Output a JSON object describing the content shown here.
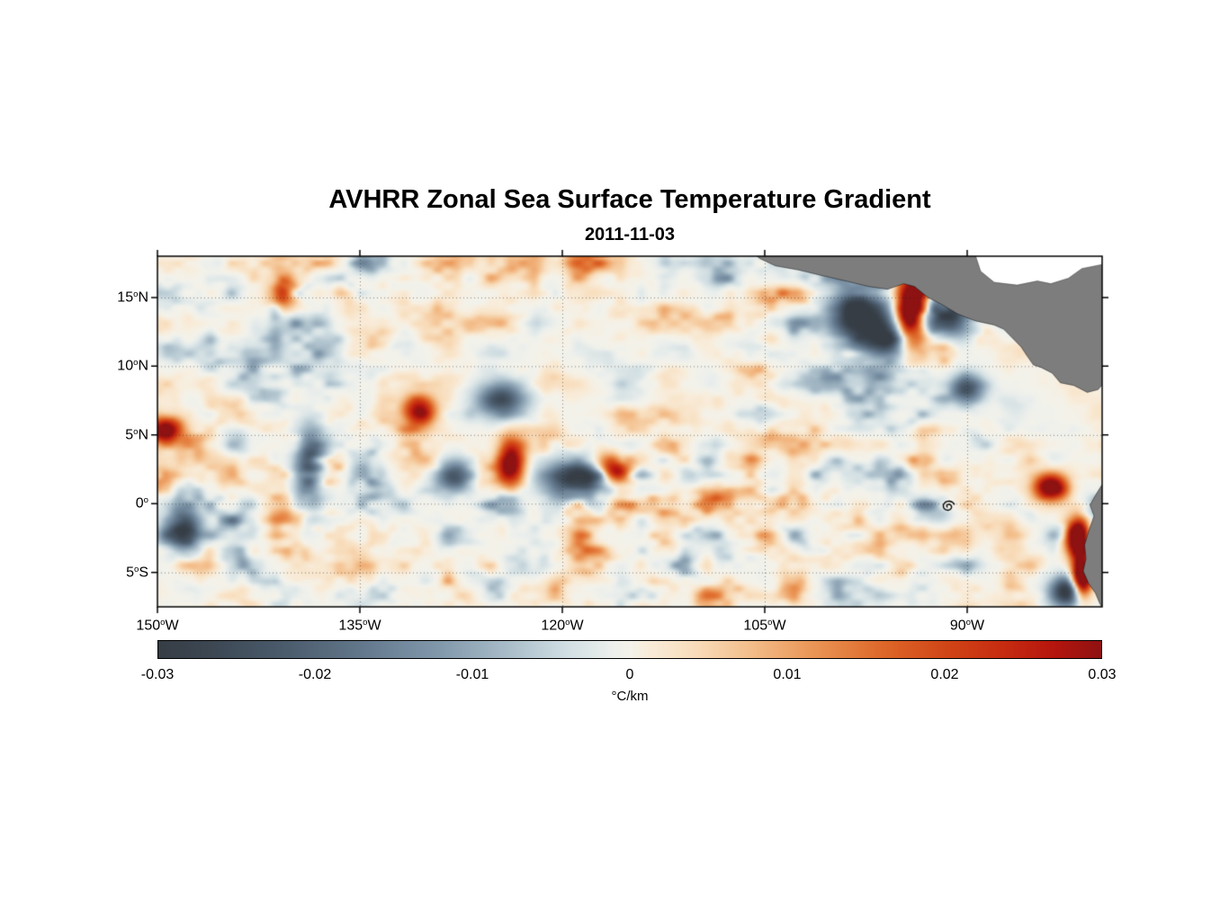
{
  "figure": {
    "title": "AVHRR Zonal Sea Surface Temperature Gradient",
    "date": "2011-11-03"
  },
  "chart_data": {
    "type": "heatmap",
    "title": "AVHRR Zonal Sea Surface Temperature Gradient",
    "subtitle": "2011-11-03",
    "variable": "zonal sea surface temperature gradient",
    "units": "°C/km",
    "lon_range": [
      -150,
      -80
    ],
    "lat_range": [
      -7.5,
      18
    ],
    "x_ticks": [
      {
        "value": -150,
        "label": "150",
        "sup": "o",
        "suffix": "W"
      },
      {
        "value": -135,
        "label": "135",
        "sup": "o",
        "suffix": "W"
      },
      {
        "value": -120,
        "label": "120",
        "sup": "o",
        "suffix": "W"
      },
      {
        "value": -105,
        "label": "105",
        "sup": "o",
        "suffix": "W"
      },
      {
        "value": -90,
        "label": "90",
        "sup": "o",
        "suffix": "W"
      }
    ],
    "y_ticks": [
      {
        "value": 15,
        "label": "15",
        "sup": "o",
        "suffix": "N"
      },
      {
        "value": 10,
        "label": "10",
        "sup": "o",
        "suffix": "N"
      },
      {
        "value": 5,
        "label": "5",
        "sup": "o",
        "suffix": "N"
      },
      {
        "value": 0,
        "label": "0",
        "sup": "o",
        "suffix": ""
      },
      {
        "value": -5,
        "label": "5",
        "sup": "o",
        "suffix": "S"
      }
    ],
    "grid": {
      "style": "dotted",
      "x_values": [
        -135,
        -120,
        -105,
        -90
      ],
      "y_values": [
        15,
        10,
        5,
        0,
        -5
      ]
    },
    "colorbar": {
      "min": -0.03,
      "max": 0.03,
      "ticks": [
        -0.03,
        -0.02,
        -0.01,
        0,
        0.01,
        0.02,
        0.03
      ],
      "tick_labels": [
        "-0.03",
        "-0.02",
        "-0.01",
        "0",
        "0.01",
        "0.02",
        "0.03"
      ],
      "label": "°C/km"
    },
    "colormap": [
      {
        "t": 0.0,
        "color": "#363d45"
      },
      {
        "t": 0.06,
        "color": "#3d4854"
      },
      {
        "t": 0.14,
        "color": "#4c5d6e"
      },
      {
        "t": 0.22,
        "color": "#64798d"
      },
      {
        "t": 0.3,
        "color": "#8299ac"
      },
      {
        "t": 0.37,
        "color": "#a8bcc8"
      },
      {
        "t": 0.43,
        "color": "#cfdde2"
      },
      {
        "t": 0.48,
        "color": "#ebefec"
      },
      {
        "t": 0.5,
        "color": "#f4f2ea"
      },
      {
        "t": 0.52,
        "color": "#f8ecd9"
      },
      {
        "t": 0.57,
        "color": "#f8dcba"
      },
      {
        "t": 0.63,
        "color": "#f3bc88"
      },
      {
        "t": 0.7,
        "color": "#e99252"
      },
      {
        "t": 0.77,
        "color": "#dd6628"
      },
      {
        "t": 0.84,
        "color": "#d04316"
      },
      {
        "t": 0.9,
        "color": "#c52a10"
      },
      {
        "t": 0.95,
        "color": "#b5150e"
      },
      {
        "t": 1.0,
        "color": "#8e1212"
      }
    ],
    "land_color": "#7d7d7d",
    "no_data_color": "#ffffff",
    "grid_color": "rgba(40,40,40,0.55)",
    "features": [
      {
        "lon": -97.8,
        "lat": 13.6,
        "slon": 1.6,
        "slat": 1.7,
        "amp": -0.034
      },
      {
        "lon": -95.8,
        "lat": 12.0,
        "slon": 1.0,
        "slat": 0.9,
        "amp": -0.024
      },
      {
        "lon": -94.1,
        "lat": 14.1,
        "slon": 0.8,
        "slat": 1.7,
        "amp": 0.052
      },
      {
        "lon": -93.0,
        "lat": 16.0,
        "slon": 0.6,
        "slat": 0.7,
        "amp": 0.03
      },
      {
        "lon": -91.0,
        "lat": 13.5,
        "slon": 1.1,
        "slat": 1.0,
        "amp": -0.022
      },
      {
        "lon": -90.0,
        "lat": 8.3,
        "slon": 0.9,
        "slat": 0.8,
        "amp": -0.022
      },
      {
        "lon": -118.6,
        "lat": 1.6,
        "slon": 1.9,
        "slat": 1.1,
        "amp": -0.028
      },
      {
        "lon": -116.2,
        "lat": 2.5,
        "slon": 1.0,
        "slat": 0.8,
        "amp": 0.042
      },
      {
        "lon": -123.8,
        "lat": 3.0,
        "slon": 0.7,
        "slat": 1.3,
        "amp": 0.034
      },
      {
        "lon": -124.5,
        "lat": 7.6,
        "slon": 1.3,
        "slat": 0.9,
        "amp": -0.024
      },
      {
        "lon": -138.6,
        "lat": 2.6,
        "slon": 0.8,
        "slat": 2.0,
        "amp": -0.026
      },
      {
        "lon": -140.7,
        "lat": 15.4,
        "slon": 0.7,
        "slat": 0.9,
        "amp": 0.028
      },
      {
        "lon": -149.4,
        "lat": 5.4,
        "slon": 0.9,
        "slat": 0.7,
        "amp": 0.034
      },
      {
        "lon": -148.0,
        "lat": -1.8,
        "slon": 0.9,
        "slat": 1.1,
        "amp": -0.028
      },
      {
        "lon": -130.6,
        "lat": 6.8,
        "slon": 0.9,
        "slat": 0.8,
        "amp": 0.03
      },
      {
        "lon": -128.0,
        "lat": 2.0,
        "slon": 1.0,
        "slat": 0.8,
        "amp": -0.024
      },
      {
        "lon": -83.8,
        "lat": 1.2,
        "slon": 0.9,
        "slat": 0.7,
        "amp": 0.038
      },
      {
        "lon": -82.2,
        "lat": 16.3,
        "slon": 0.8,
        "slat": 0.7,
        "amp": 0.035
      },
      {
        "lon": -81.8,
        "lat": -2.4,
        "slon": 0.6,
        "slat": 1.0,
        "amp": 0.05
      },
      {
        "lon": -81.5,
        "lat": -5.3,
        "slon": 0.5,
        "slat": 1.1,
        "amp": 0.05
      },
      {
        "lon": -82.6,
        "lat": -6.4,
        "slon": 0.9,
        "slat": 0.8,
        "amp": -0.032
      }
    ],
    "land_polygons": [
      [
        [
          -106.5,
          18.6
        ],
        [
          -105.3,
          17.8
        ],
        [
          -104.2,
          17.3
        ],
        [
          -102.5,
          17.0
        ],
        [
          -100.8,
          16.6
        ],
        [
          -99.0,
          16.2
        ],
        [
          -97.3,
          15.8
        ],
        [
          -95.9,
          15.6
        ],
        [
          -94.7,
          16.0
        ],
        [
          -93.9,
          15.8
        ],
        [
          -92.9,
          15.0
        ],
        [
          -91.9,
          14.5
        ],
        [
          -90.7,
          13.8
        ],
        [
          -89.4,
          13.3
        ],
        [
          -88.0,
          13.0
        ],
        [
          -87.3,
          12.7
        ],
        [
          -86.6,
          12.0
        ],
        [
          -86.0,
          11.4
        ],
        [
          -85.6,
          10.8
        ],
        [
          -85.1,
          10.1
        ],
        [
          -84.5,
          9.9
        ],
        [
          -83.7,
          9.5
        ],
        [
          -83.1,
          8.8
        ],
        [
          -82.1,
          8.6
        ],
        [
          -81.1,
          8.1
        ],
        [
          -80.3,
          8.3
        ],
        [
          -79.7,
          9.0
        ],
        [
          -79.0,
          8.5
        ],
        [
          -78.3,
          8.8
        ],
        [
          -77.8,
          7.6
        ],
        [
          -77.4,
          6.8
        ],
        [
          -76.0,
          6.0
        ],
        [
          -76.0,
          19.0
        ],
        [
          -106.5,
          19.0
        ]
      ],
      [
        [
          -80.0,
          1.4
        ],
        [
          -80.5,
          0.6
        ],
        [
          -80.9,
          -0.1
        ],
        [
          -80.6,
          -0.9
        ],
        [
          -81.0,
          -2.0
        ],
        [
          -81.3,
          -3.0
        ],
        [
          -81.2,
          -4.0
        ],
        [
          -81.4,
          -4.9
        ],
        [
          -81.0,
          -5.8
        ],
        [
          -80.5,
          -6.5
        ],
        [
          -80.2,
          -7.2
        ],
        [
          -80.0,
          -7.6
        ],
        [
          -76.0,
          -7.6
        ],
        [
          -76.0,
          1.4
        ]
      ]
    ],
    "sea_masks": [
      [
        [
          -89.6,
          18.7
        ],
        [
          -89.0,
          16.9
        ],
        [
          -88.0,
          16.1
        ],
        [
          -86.3,
          15.9
        ],
        [
          -84.8,
          16.2
        ],
        [
          -83.8,
          16.0
        ],
        [
          -82.5,
          16.4
        ],
        [
          -81.5,
          17.1
        ],
        [
          -80.0,
          17.4
        ],
        [
          -80.0,
          18.7
        ]
      ]
    ],
    "eddy_marker": {
      "lon": -91.4,
      "lat": -0.2
    },
    "noise": {
      "seed": 11,
      "octaves": [
        {
          "wx": 3.2,
          "wy": 2.2,
          "amp": 1.0
        },
        {
          "wx": 1.6,
          "wy": 1.1,
          "amp": 0.55
        },
        {
          "wx": 0.8,
          "wy": 0.55,
          "amp": 0.3
        }
      ],
      "exponent": 1.55,
      "scale": 0.034
    }
  }
}
